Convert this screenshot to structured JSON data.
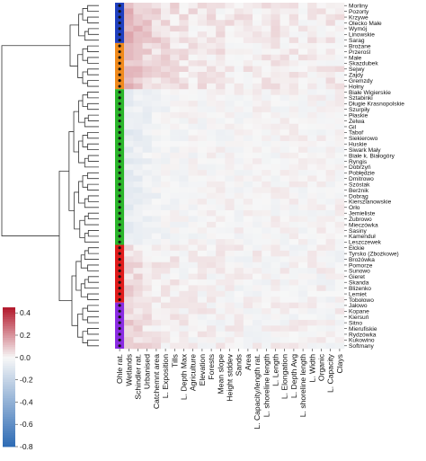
{
  "chart_data": {
    "type": "heatmap",
    "title": "",
    "xlabel": "",
    "ylabel": "",
    "rows": [
      "Morliny",
      "Pozorty",
      "Krzywe",
      "Olecko Małe",
      "Wymój",
      "Linowskie",
      "Sarag",
      "Brożane",
      "Przerośl",
      "Małe",
      "Skazdubek",
      "Sejwy",
      "Zajdy",
      "Gremzdy",
      "Hołny",
      "Białe Wigierskie",
      "Sztabinki",
      "Długie Krasnopolskie",
      "Szurpiły",
      "Płaskie",
      "Żelwa",
      "Gil",
      "Taboř",
      "Siekierowo",
      "Huskie",
      "Siwark Mały",
      "Białe k. Białogóry",
      "Ryngis",
      "Dobrzyń",
      "Pobłędzie",
      "Dmitrowo",
      "Szóstak",
      "Berżnik",
      "Dobrąg",
      "Kierszlanowskie",
      "Orło",
      "Jemieliste",
      "Żubrowo",
      "Mieczówka",
      "Sasiny",
      "Kamenduł",
      "Leszczewek",
      "Ełckie",
      "Tyrsko (Zbożkowe)",
      "Brożówka",
      "Pomorze",
      "Sunowo",
      "Gieret",
      "Skanda",
      "Blizenko",
      "Lemiet",
      "Tobołowo",
      "Jałowo",
      "Kopane",
      "Kiersuń",
      "Sitno",
      "Mierufiskie",
      "Rydzówka",
      "Kukowino",
      "Softmany"
    ],
    "columns": [
      "Ohle rat.",
      "Wetlands",
      "Schindler rat.",
      "Urbanised",
      "Catchemnt area",
      "L. Exposition",
      "Tills",
      "L. Depth Max",
      "Agriculture",
      "Elevation",
      "Forests",
      "Mean slope",
      "Height stddev",
      "Sands",
      "Area",
      "L. Capacity/length rat.",
      "L. shoreline length",
      "L. Length",
      "L. Elongation",
      "L. Depth Avg",
      "L. shoreline length",
      "L. Width",
      "Organic",
      "L. Capacity",
      "Clays"
    ],
    "clusters": [
      {
        "color": "#1f3fbf",
        "start": 0,
        "end": 6
      },
      {
        "color": "#f08a1c",
        "start": 7,
        "end": 14
      },
      {
        "color": "#2bb52b",
        "start": 15,
        "end": 41
      },
      {
        "color": "#e01b1b",
        "start": 42,
        "end": 51
      },
      {
        "color": "#8a2be2",
        "start": 52,
        "end": 59
      }
    ],
    "colorbar": {
      "ticks": [
        "0.4",
        "0.2",
        "0.0",
        "-0.2",
        "-0.4",
        "-0.6",
        "-0.8"
      ],
      "min": -0.8,
      "max": 0.45
    },
    "values_note_colors": {
      "neg": "#2166ac",
      "mid": "#f7f7f7",
      "pos": "#b2182b"
    }
  }
}
